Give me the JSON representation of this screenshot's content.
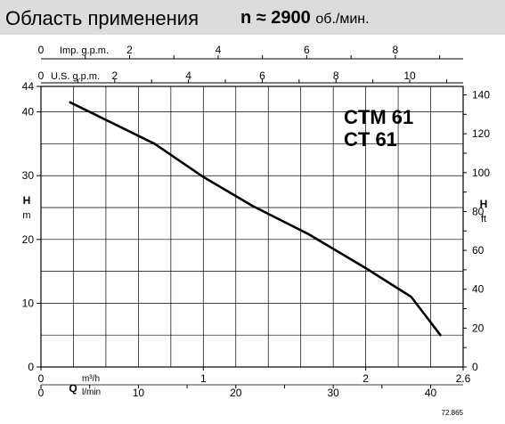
{
  "header": {
    "title": "Область применения",
    "speed_prefix": "n ≈ 2900",
    "speed_unit": "об./мин."
  },
  "chart_data": {
    "type": "line",
    "model_lines": [
      "CTM 61",
      "CT    61"
    ],
    "series": [
      {
        "x": [
          0.18,
          0.7,
          1.0,
          1.3,
          1.65,
          2.0,
          2.28,
          2.46
        ],
        "y": [
          41.5,
          35.0,
          29.8,
          25.3,
          20.8,
          15.5,
          11.0,
          5.0
        ]
      }
    ],
    "xlim": [
      0,
      2.6
    ],
    "ylim": [
      0,
      44
    ],
    "x_ticks_m3h": [
      "0",
      "1",
      "2",
      "2.6"
    ],
    "x_ticks_m3h_values": [
      0,
      1,
      2,
      2.6
    ],
    "x_ticks_lmin": [
      "0",
      "10",
      "20",
      "30",
      "40"
    ],
    "x_ticks_lmin_values": [
      0,
      10,
      20,
      30,
      40
    ],
    "top_axis_us": {
      "label": "U.S. g.p.m.",
      "start": "0",
      "ticks": [
        "2",
        "4",
        "6",
        "8",
        "10"
      ],
      "values": [
        2,
        4,
        6,
        8,
        10
      ],
      "factor": 0.2271
    },
    "top_axis_imp": {
      "label": "Imp. g.p.m.",
      "start": "0",
      "ticks": [
        "2",
        "4",
        "6",
        "8"
      ],
      "values": [
        2,
        4,
        6,
        8
      ],
      "factor": 0.2728
    },
    "y_left_ticks": [
      "0",
      "10",
      "20",
      "30",
      "40",
      "44"
    ],
    "y_left_values": [
      0,
      10,
      20,
      30,
      40,
      44
    ],
    "y_right_ticks": [
      "0",
      "20",
      "40",
      "60",
      "80",
      "100",
      "120",
      "140"
    ],
    "y_right_values": [
      0,
      20,
      40,
      60,
      80,
      100,
      120,
      140
    ],
    "y_left_label": {
      "letter": "H",
      "unit": "m"
    },
    "y_right_label": {
      "letter": "H",
      "unit": "ft"
    },
    "x_label": {
      "letter": "Q",
      "unit_top": "m³/h",
      "unit_bottom": "l/min"
    },
    "footnote": "72.865",
    "grid": true
  }
}
